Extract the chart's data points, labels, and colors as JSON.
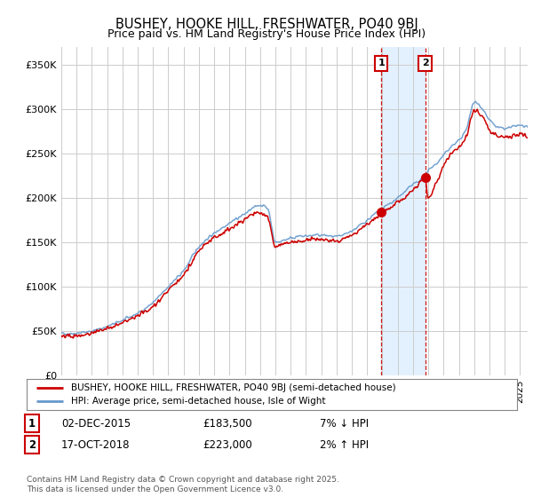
{
  "title": "BUSHEY, HOOKE HILL, FRESHWATER, PO40 9BJ",
  "subtitle": "Price paid vs. HM Land Registry's House Price Index (HPI)",
  "legend_label1": "BUSHEY, HOOKE HILL, FRESHWATER, PO40 9BJ (semi-detached house)",
  "legend_label2": "HPI: Average price, semi-detached house, Isle of Wight",
  "footer": "Contains HM Land Registry data © Crown copyright and database right 2025.\nThis data is licensed under the Open Government Licence v3.0.",
  "sale1_label": "02-DEC-2015",
  "sale1_price": "£183,500",
  "sale1_pct": "7% ↓ HPI",
  "sale2_label": "17-OCT-2018",
  "sale2_price": "£223,000",
  "sale2_pct": "2% ↑ HPI",
  "ylabel_ticks": [
    "£0",
    "£50K",
    "£100K",
    "£150K",
    "£200K",
    "£250K",
    "£300K",
    "£350K"
  ],
  "ylabel_values": [
    0,
    50000,
    100000,
    150000,
    200000,
    250000,
    300000,
    350000
  ],
  "ylim": [
    0,
    370000
  ],
  "xlim_start": 1995.0,
  "xlim_end": 2025.5,
  "color_red": "#cc0000",
  "color_blue": "#6699cc",
  "color_shading": "#ddeeff",
  "sale1_x": 2015.92,
  "sale1_y": 183500,
  "sale2_x": 2018.79,
  "sale2_y": 223000,
  "background_color": "#ffffff",
  "grid_color": "#cccccc"
}
